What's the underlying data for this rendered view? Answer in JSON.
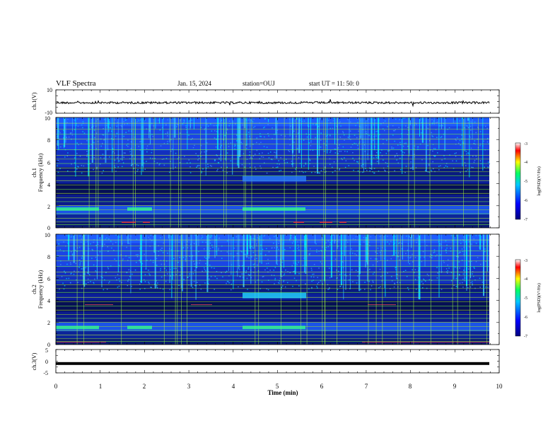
{
  "header": {
    "title": "VLF Spectra",
    "date": "Jan. 15, 2024",
    "station": "station=OUJ",
    "start": "start  UT =   11: 50: 0"
  },
  "chart_data": {
    "type": "heatmap",
    "xlabel": "Time  (min)",
    "x_ticks": [
      "0",
      "1",
      "2",
      "3",
      "4",
      "5",
      "6",
      "7",
      "8",
      "9",
      "10"
    ],
    "xlim": [
      0,
      10
    ],
    "panels": [
      {
        "ylabel": "ch.1(V)",
        "type": "line",
        "ylim": [
          -10,
          10
        ],
        "y_ticks": [
          "10",
          "-10"
        ],
        "level": -1
      },
      {
        "ylabel_top": "ch.1",
        "ylabel": "Frequency  (kHz)",
        "type": "heatmap",
        "ylim": [
          0,
          10
        ],
        "y_ticks": [
          "0",
          "2",
          "4",
          "6",
          "8",
          "10"
        ]
      },
      {
        "ylabel_top": "ch.2",
        "ylabel": "Frequency  (kHz)",
        "type": "heatmap",
        "ylim": [
          0,
          10
        ],
        "y_ticks": [
          "0",
          "2",
          "4",
          "6",
          "8",
          "10"
        ]
      },
      {
        "ylabel": "ch.3(V)",
        "type": "line",
        "ylim": [
          -5,
          5
        ],
        "y_ticks": [
          "5",
          "0",
          "-5"
        ],
        "level": -1
      }
    ],
    "colorbar": {
      "label": "log(PSD)(V²/Hz)",
      "range": [
        -7,
        -3
      ],
      "ticks": [
        "-3",
        "-4",
        "-5",
        "-6",
        "-7"
      ]
    },
    "colors": [
      "#000080",
      "#0000ff",
      "#00aaff",
      "#00ff66",
      "#ffff00",
      "#ff0000",
      "#ffffff"
    ]
  }
}
